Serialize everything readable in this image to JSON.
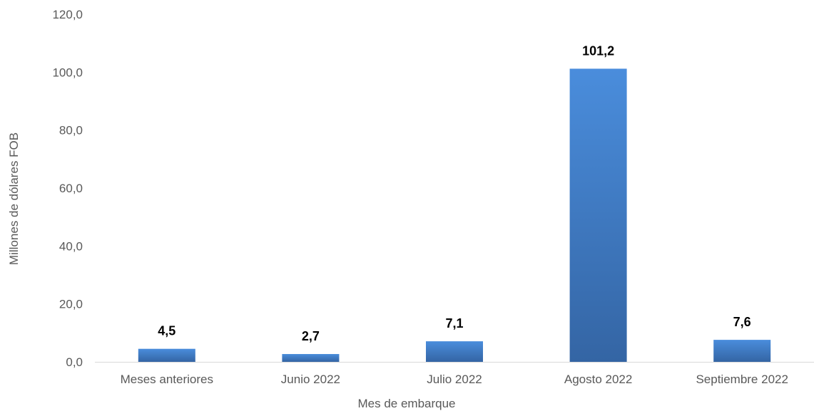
{
  "chart_data": {
    "type": "bar",
    "title": "",
    "xlabel": "Mes de embarque",
    "ylabel": "Millones de dólares FOB",
    "categories": [
      "Meses anteriores",
      "Junio 2022",
      "Julio 2022",
      "Agosto 2022",
      "Septiembre 2022"
    ],
    "values": [
      4.5,
      2.7,
      7.1,
      101.2,
      7.6
    ],
    "value_labels": [
      "4,5",
      "2,7",
      "7,1",
      "101,2",
      "7,6"
    ],
    "ylim": [
      0,
      120
    ],
    "yticks": [
      0,
      20,
      40,
      60,
      80,
      100,
      120
    ],
    "ytick_labels": [
      "0,0",
      "20,0",
      "40,0",
      "60,0",
      "80,0",
      "100,0",
      "120,0"
    ],
    "grid": false,
    "legend": "none",
    "bar_color_top": "#4a8ddc",
    "bar_color_bottom": "#3465a4",
    "baseline_color": "#d9d9d9"
  }
}
